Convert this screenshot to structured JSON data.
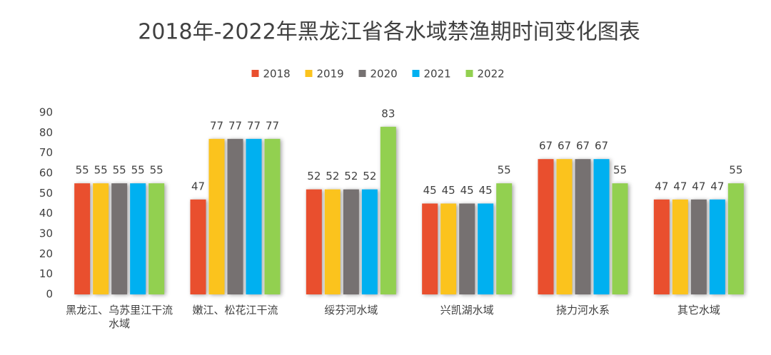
{
  "chart_data": {
    "type": "bar",
    "title": "2018年-2022年黑龙江省各水域禁渔期时间变化图表",
    "categories": [
      "黑龙江、乌苏里江干流水域",
      "嫩江、松花江干流",
      "绥芬河水域",
      "兴凯湖水域",
      "挠力河水系",
      "其它水域"
    ],
    "series": [
      {
        "name": "2018",
        "color": "#e94f2e",
        "values": [
          55,
          47,
          52,
          45,
          67,
          47
        ]
      },
      {
        "name": "2019",
        "color": "#fbc31d",
        "values": [
          55,
          77,
          52,
          45,
          67,
          47
        ]
      },
      {
        "name": "2020",
        "color": "#767171",
        "values": [
          55,
          77,
          52,
          45,
          67,
          47
        ]
      },
      {
        "name": "2021",
        "color": "#00b0f0",
        "values": [
          55,
          77,
          52,
          45,
          67,
          47
        ]
      },
      {
        "name": "2022",
        "color": "#92d050",
        "values": [
          55,
          77,
          83,
          55,
          55,
          55
        ]
      }
    ],
    "ylim": [
      0,
      90
    ],
    "yticks": [
      0,
      10,
      20,
      30,
      40,
      50,
      60,
      70,
      80,
      90
    ],
    "legend": "top"
  }
}
